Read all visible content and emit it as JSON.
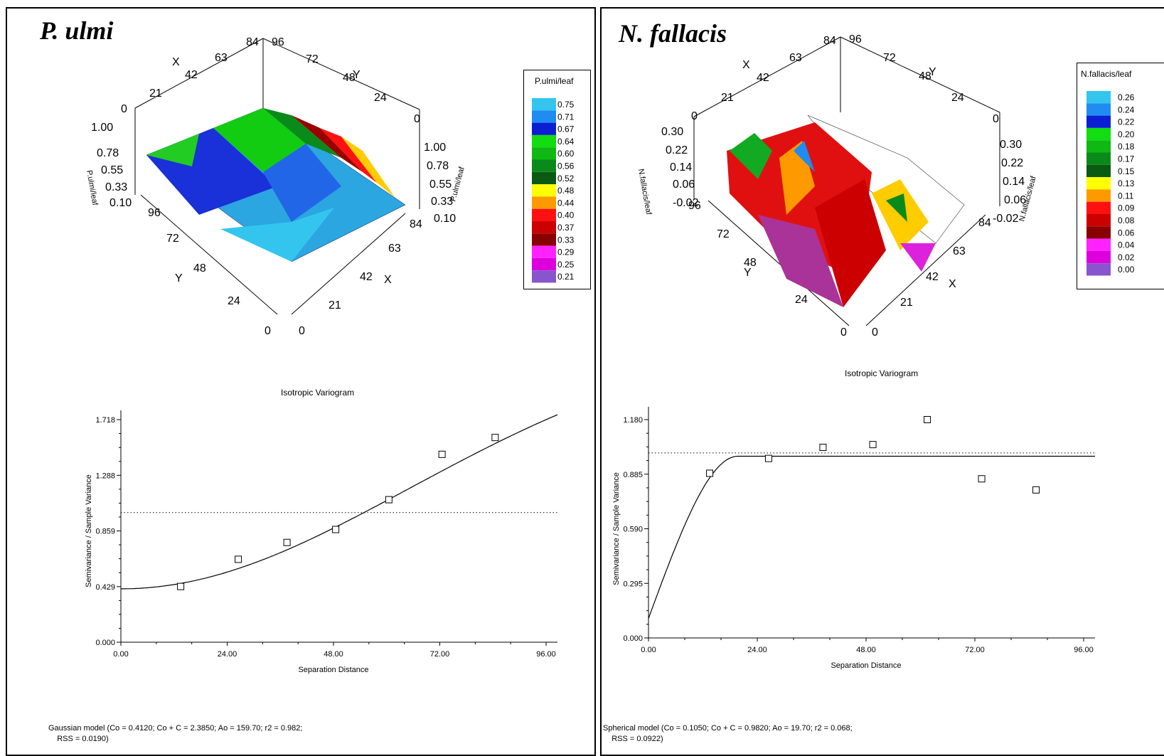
{
  "panels": [
    {
      "title": "P. ulmi",
      "legend": {
        "title": "P.ulmi/leaf",
        "labels": [
          "0.75",
          "0.71",
          "0.67",
          "0.64",
          "0.60",
          "0.56",
          "0.52",
          "0.48",
          "0.44",
          "0.40",
          "0.37",
          "0.33",
          "0.29",
          "0.25",
          "0.21"
        ],
        "colors": [
          "#33c5ee",
          "#1e8cf0",
          "#0b1ed4",
          "#11dd11",
          "#0fb812",
          "#0a8a1a",
          "#0a5a14",
          "#ffff00",
          "#ff9900",
          "#ff1111",
          "#cc0000",
          "#880000",
          "#ff22ff",
          "#dd00dd",
          "#8855cc"
        ]
      },
      "surface_axes": {
        "z_label": "P.ulmi/leaf",
        "z_ticks": [
          "1.00",
          "0.78",
          "0.55",
          "0.33",
          "0.10"
        ],
        "y_ticks": [
          "96",
          "72",
          "48",
          "24",
          "0"
        ],
        "x_ticks": [
          "0",
          "21",
          "42",
          "63",
          "84"
        ],
        "back_x_ticks": [
          "0",
          "21",
          "42",
          "63",
          "84"
        ],
        "back_y_ticks": [
          "0",
          "24",
          "48",
          "72",
          "96"
        ],
        "x_letter": "X",
        "y_letter": "Y"
      },
      "variogram_title": "Isotropic Variogram",
      "model_text": "Gaussian model (Co = 0.4120; Co + C = 2.3850; Ao = 159.70; r2 = 0.982;\n    RSS = 0.0190)"
    },
    {
      "title": "N. fallacis",
      "legend": {
        "title": "N.fallacis/leaf",
        "labels": [
          "0.26",
          "0.24",
          "0.22",
          "0.20",
          "0.18",
          "0.17",
          "0.15",
          "0.13",
          "0.11",
          "0.09",
          "0.08",
          "0.06",
          "0.04",
          "0.02",
          "0.00"
        ],
        "colors": [
          "#33c5ee",
          "#1e8cf0",
          "#0b1ed4",
          "#11dd11",
          "#0fb812",
          "#0a8a1a",
          "#0a5a14",
          "#ffff00",
          "#ff9900",
          "#ff1111",
          "#cc0000",
          "#880000",
          "#ff22ff",
          "#dd00dd",
          "#8855cc"
        ]
      },
      "surface_axes": {
        "z_label": "N.fallacis/leaf",
        "z_ticks": [
          "0.30",
          "0.22",
          "0.14",
          "0.06",
          "-0.02"
        ],
        "y_ticks": [
          "96",
          "72",
          "48",
          "24",
          "0"
        ],
        "x_ticks": [
          "0",
          "21",
          "42",
          "63",
          "84"
        ],
        "back_x_ticks": [
          "0",
          "21",
          "42",
          "63",
          "84"
        ],
        "back_y_ticks": [
          "0",
          "24",
          "48",
          "72",
          "96"
        ],
        "x_letter": "X",
        "y_letter": "Y"
      },
      "variogram_title": "Isotropic Variogram",
      "model_text": "Spherical model (Co = 0.1050; Co + C = 0.9820; Ao = 19.70; r2 = 0.068;\n    RSS = 0.0922)"
    }
  ],
  "chart_data": [
    {
      "type": "scatter",
      "title": "Isotropic Variogram",
      "xlabel": "Separation Distance",
      "ylabel": "Semivariance / Sample Variance",
      "xlim": [
        0,
        96
      ],
      "ylim": [
        0,
        1.718
      ],
      "xticks": [
        "0.00",
        "24.00",
        "48.00",
        "72.00",
        "96.00"
      ],
      "yticks": [
        "0.000",
        "0.429",
        "0.859",
        "1.288",
        "1.718"
      ],
      "points": [
        [
          13.5,
          0.43
        ],
        [
          26.5,
          0.64
        ],
        [
          37.5,
          0.77
        ],
        [
          48.5,
          0.87
        ],
        [
          60.5,
          1.1
        ],
        [
          72.5,
          1.45
        ],
        [
          84.5,
          1.58
        ]
      ],
      "sill": 1.0,
      "model": {
        "type": "gaussian",
        "nugget": 0.412,
        "sill": 2.385,
        "range": 159.7
      }
    },
    {
      "type": "scatter",
      "title": "Isotropic Variogram",
      "xlabel": "Separation Distance",
      "ylabel": "Semivariance / Sample Variance",
      "xlim": [
        0,
        96
      ],
      "ylim": [
        0,
        1.18
      ],
      "xticks": [
        "0.00",
        "24.00",
        "48.00",
        "72.00",
        "96.00"
      ],
      "yticks": [
        "0.000",
        "0.295",
        "0.590",
        "0.885",
        "1.180"
      ],
      "points": [
        [
          13.5,
          0.89
        ],
        [
          26.5,
          0.97
        ],
        [
          38.5,
          1.03
        ],
        [
          49.5,
          1.045
        ],
        [
          61.5,
          1.18
        ],
        [
          73.5,
          0.86
        ],
        [
          85.5,
          0.8
        ]
      ],
      "sill": 1.0,
      "model": {
        "type": "spherical",
        "nugget": 0.105,
        "sill": 0.982,
        "range": 19.7
      }
    }
  ]
}
